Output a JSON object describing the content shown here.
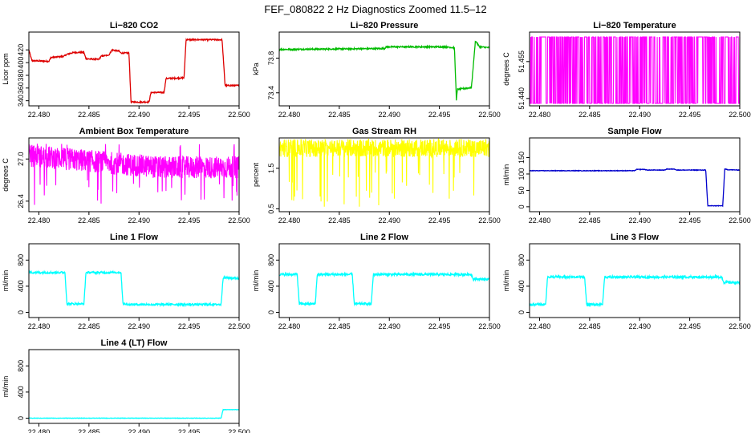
{
  "figure_title": "FEF_080822  2 Hz Diagnostics Zoomed 11.5–12",
  "chart_data": [
    {
      "type": "line",
      "title": "Li−820 CO2",
      "ylabel": "Licor ppm",
      "color": "#dd0000",
      "xlim": [
        22.479,
        22.5
      ],
      "ylim": [
        332,
        448
      ],
      "xticks": [
        "22.480",
        "22.485",
        "22.490",
        "22.495",
        "22.500"
      ],
      "yticks": [
        "340",
        "360",
        "380",
        "400",
        "420"
      ],
      "segments": [
        [
          22.479,
          420
        ],
        [
          22.4793,
          403
        ],
        [
          22.481,
          402
        ],
        [
          22.4812,
          408
        ],
        [
          22.4825,
          410
        ],
        [
          22.4828,
          413
        ],
        [
          22.4835,
          416
        ],
        [
          22.4845,
          416
        ],
        [
          22.4847,
          406
        ],
        [
          22.486,
          405
        ],
        [
          22.4862,
          410
        ],
        [
          22.487,
          412
        ],
        [
          22.4873,
          420
        ],
        [
          22.488,
          418
        ],
        [
          22.4882,
          415
        ],
        [
          22.489,
          415
        ],
        [
          22.4892,
          338
        ],
        [
          22.491,
          338
        ],
        [
          22.4912,
          353
        ],
        [
          22.4925,
          353
        ],
        [
          22.4927,
          375
        ],
        [
          22.4945,
          376
        ],
        [
          22.4947,
          436
        ],
        [
          22.4983,
          436
        ],
        [
          22.4986,
          364
        ],
        [
          22.5,
          364
        ]
      ],
      "noise": 1.0
    },
    {
      "type": "line",
      "title": "Li−820 Pressure",
      "ylabel": "kPa",
      "color": "#00bb00",
      "xlim": [
        22.479,
        22.5
      ],
      "ylim": [
        73.25,
        74.1
      ],
      "xticks": [
        "22.480",
        "22.485",
        "22.490",
        "22.495",
        "22.500"
      ],
      "yticks": [
        "73.4",
        "73.8"
      ],
      "segments": [
        [
          22.479,
          73.9
        ],
        [
          22.4895,
          73.91
        ],
        [
          22.4897,
          73.93
        ],
        [
          22.4955,
          73.93
        ],
        [
          22.4965,
          73.92
        ],
        [
          22.4967,
          73.32
        ],
        [
          22.4968,
          73.44
        ],
        [
          22.4982,
          73.46
        ],
        [
          22.4986,
          74.0
        ],
        [
          22.499,
          73.93
        ],
        [
          22.5,
          73.92
        ]
      ],
      "noise": 0.008
    },
    {
      "type": "binary",
      "title": "Li−820 Temperature",
      "ylabel": "degrees C",
      "color": "#ff00ff",
      "xlim": [
        22.479,
        22.5
      ],
      "ylim": [
        51.437,
        51.467
      ],
      "xticks": [
        "22.480",
        "22.485",
        "22.490",
        "22.495",
        "22.500"
      ],
      "yticks": [
        "51.440",
        "51.455"
      ],
      "levels": [
        51.438,
        51.465
      ]
    },
    {
      "type": "noisy",
      "title": "Ambient Box Temperature",
      "ylabel": "degrees C",
      "color": "#ff00ff",
      "xlim": [
        22.479,
        22.5
      ],
      "ylim": [
        26.25,
        27.3
      ],
      "xticks": [
        "22.480",
        "22.485",
        "22.490",
        "22.495",
        "22.500"
      ],
      "yticks": [
        "26.4",
        "27.0"
      ],
      "level_start": 27.05,
      "level_end": 26.88,
      "amp": 0.16,
      "spike_low": 26.32,
      "spike_high": 27.22
    },
    {
      "type": "noisy",
      "title": "Gas Stream RH",
      "ylabel": "percent",
      "color": "#ffff00",
      "xlim": [
        22.479,
        22.5
      ],
      "ylim": [
        0.43,
        2.25
      ],
      "xticks": [
        "22.480",
        "22.485",
        "22.490",
        "22.495",
        "22.500"
      ],
      "yticks": [
        "0.5",
        "1.5"
      ],
      "level_start": 2.0,
      "level_end": 2.0,
      "amp": 0.22,
      "spike_low": 0.55,
      "spike_high": 2.18
    },
    {
      "type": "line",
      "title": "Sample Flow",
      "ylabel": "ml/min",
      "color": "#0000cc",
      "xlim": [
        22.479,
        22.5
      ],
      "ylim": [
        -15,
        210
      ],
      "xticks": [
        "22.480",
        "22.485",
        "22.490",
        "22.495",
        "22.500"
      ],
      "yticks": [
        "0",
        "50",
        "100",
        "150"
      ],
      "segments": [
        [
          22.479,
          110
        ],
        [
          22.4895,
          110
        ],
        [
          22.4897,
          114
        ],
        [
          22.4905,
          114
        ],
        [
          22.4907,
          112
        ],
        [
          22.4925,
          112
        ],
        [
          22.4927,
          115
        ],
        [
          22.4935,
          115
        ],
        [
          22.4937,
          112
        ],
        [
          22.4966,
          112
        ],
        [
          22.4968,
          3
        ],
        [
          22.4983,
          3
        ],
        [
          22.4985,
          115
        ],
        [
          22.4988,
          113
        ],
        [
          22.5,
          112
        ]
      ],
      "noise": 0.8
    },
    {
      "type": "line",
      "title": "Line 1 Flow",
      "ylabel": "ml/min",
      "color": "#00ffff",
      "xlim": [
        22.479,
        22.5
      ],
      "ylim": [
        -80,
        1050
      ],
      "xticks": [
        "22.480",
        "22.485",
        "22.490",
        "22.495",
        "22.500"
      ],
      "yticks": [
        "0",
        "400",
        "800"
      ],
      "segments": [
        [
          22.479,
          610
        ],
        [
          22.4826,
          610
        ],
        [
          22.4828,
          130
        ],
        [
          22.4845,
          130
        ],
        [
          22.4847,
          610
        ],
        [
          22.4882,
          610
        ],
        [
          22.4884,
          130
        ],
        [
          22.489,
          120
        ],
        [
          22.4982,
          120
        ],
        [
          22.4984,
          530
        ],
        [
          22.5,
          520
        ]
      ],
      "noise": 15
    },
    {
      "type": "line",
      "title": "Line 2 Flow",
      "ylabel": "ml/min",
      "color": "#00ffff",
      "xlim": [
        22.479,
        22.5
      ],
      "ylim": [
        -80,
        1050
      ],
      "xticks": [
        "22.480",
        "22.485",
        "22.490",
        "22.495",
        "22.500"
      ],
      "yticks": [
        "0",
        "400",
        "800"
      ],
      "segments": [
        [
          22.479,
          580
        ],
        [
          22.4808,
          580
        ],
        [
          22.481,
          130
        ],
        [
          22.4826,
          130
        ],
        [
          22.4828,
          580
        ],
        [
          22.4863,
          580
        ],
        [
          22.4865,
          130
        ],
        [
          22.4882,
          130
        ],
        [
          22.4884,
          580
        ],
        [
          22.4982,
          580
        ],
        [
          22.4984,
          510
        ],
        [
          22.5,
          505
        ]
      ],
      "noise": 18
    },
    {
      "type": "line",
      "title": "Line 3 Flow",
      "ylabel": "ml/min",
      "color": "#00ffff",
      "xlim": [
        22.479,
        22.5
      ],
      "ylim": [
        -80,
        1050
      ],
      "xticks": [
        "22.480",
        "22.485",
        "22.490",
        "22.495",
        "22.500"
      ],
      "yticks": [
        "0",
        "400",
        "800"
      ],
      "segments": [
        [
          22.479,
          120
        ],
        [
          22.4806,
          120
        ],
        [
          22.4808,
          540
        ],
        [
          22.4845,
          540
        ],
        [
          22.4847,
          120
        ],
        [
          22.4863,
          120
        ],
        [
          22.4865,
          540
        ],
        [
          22.4982,
          540
        ],
        [
          22.4984,
          460
        ],
        [
          22.5,
          455
        ]
      ],
      "noise": 18
    },
    {
      "type": "line",
      "title": "Line 4 (LT) Flow",
      "ylabel": "ml/min",
      "color": "#00ffff",
      "xlim": [
        22.479,
        22.5
      ],
      "ylim": [
        -80,
        1050
      ],
      "xticks": [
        "22.480",
        "22.485",
        "22.490",
        "22.495",
        "22.500"
      ],
      "yticks": [
        "0",
        "400",
        "800"
      ],
      "segments": [
        [
          22.479,
          0
        ],
        [
          22.4982,
          0
        ],
        [
          22.4984,
          130
        ],
        [
          22.5,
          130
        ]
      ],
      "noise": 3
    }
  ]
}
